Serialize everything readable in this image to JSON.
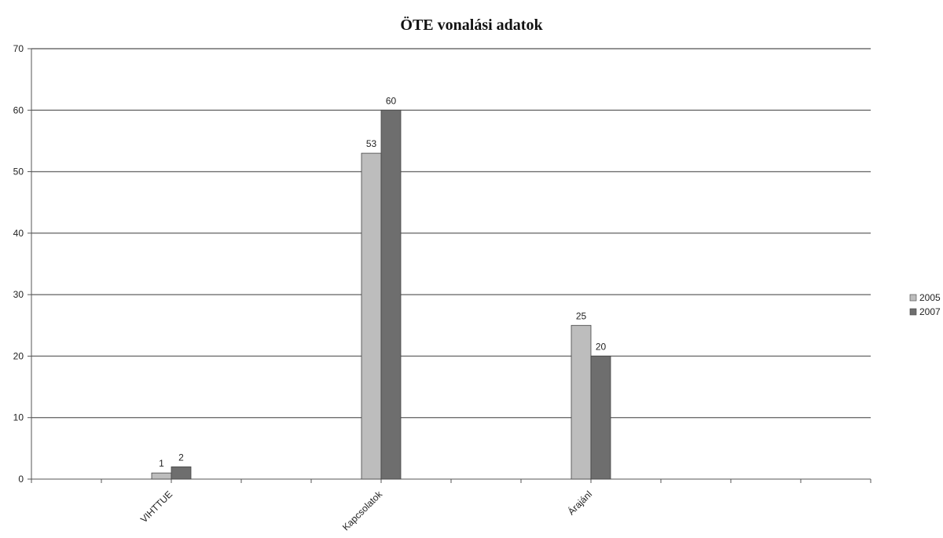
{
  "chart_data": {
    "type": "bar",
    "title": "ÖTE vonalási adatok",
    "categories": [
      "VIHTTUE",
      "Kapcsolatok",
      "Árajánl"
    ],
    "series": [
      {
        "name": "2005",
        "color": "#bdbdbd",
        "values": [
          1,
          53,
          25
        ]
      },
      {
        "name": "2007",
        "color": "#6e6e6e",
        "values": [
          2,
          60,
          20
        ]
      }
    ],
    "data_labels": [
      [
        "1",
        "53",
        "25"
      ],
      [
        "2",
        "60",
        "20"
      ]
    ],
    "yticks": [
      0,
      10,
      20,
      30,
      40,
      50,
      60,
      70
    ],
    "ylim": [
      0,
      70
    ],
    "xlabel": "",
    "ylabel": "",
    "grid": true,
    "legend": "right"
  }
}
